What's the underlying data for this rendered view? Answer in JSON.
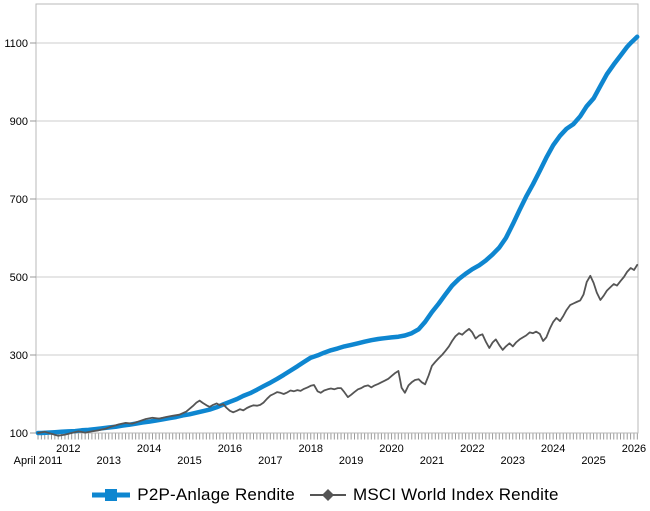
{
  "chart_data": {
    "type": "line",
    "title": "",
    "xlabel": "",
    "ylabel": "",
    "grid": "horizontal",
    "legend_position": "bottom",
    "y_axis": {
      "ticks": [
        100,
        300,
        500,
        700,
        900,
        1100
      ],
      "tick_labels": [
        "100",
        "300",
        "500",
        "700",
        "900",
        "1100"
      ],
      "range": [
        100,
        1200
      ]
    },
    "x_axis": {
      "range_years": [
        2011.2,
        2026.1
      ],
      "minor_tick_unit": "month",
      "top_row": [
        {
          "label": "2012",
          "year": 2012
        },
        {
          "label": "2014",
          "year": 2014
        },
        {
          "label": "2016",
          "year": 2016
        },
        {
          "label": "2018",
          "year": 2018
        },
        {
          "label": "2020",
          "year": 2020
        },
        {
          "label": "2022",
          "year": 2022
        },
        {
          "label": "2024",
          "year": 2024
        },
        {
          "label": "2026",
          "year": 2026
        }
      ],
      "bottom_row": [
        {
          "label": "April 2011",
          "year": 2011.25
        },
        {
          "label": "2013",
          "year": 2013
        },
        {
          "label": "2015",
          "year": 2015
        },
        {
          "label": "2017",
          "year": 2017
        },
        {
          "label": "2019",
          "year": 2019
        },
        {
          "label": "2021",
          "year": 2021
        },
        {
          "label": "2023",
          "year": 2023
        },
        {
          "label": "2025",
          "year": 2025
        }
      ]
    },
    "series": [
      {
        "name": "P2P-Anlage Rendite",
        "color": "#0e86d0",
        "marker": "square",
        "line_width": 4.5,
        "points": [
          [
            2011.25,
            100
          ],
          [
            2011.33,
            100
          ],
          [
            2011.5,
            101
          ],
          [
            2011.67,
            102
          ],
          [
            2011.83,
            103
          ],
          [
            2012.0,
            104
          ],
          [
            2012.17,
            105
          ],
          [
            2012.33,
            107
          ],
          [
            2012.5,
            108
          ],
          [
            2012.67,
            110
          ],
          [
            2012.83,
            112
          ],
          [
            2013.0,
            114
          ],
          [
            2013.17,
            116
          ],
          [
            2013.33,
            119
          ],
          [
            2013.5,
            121
          ],
          [
            2013.67,
            124
          ],
          [
            2013.83,
            127
          ],
          [
            2014.0,
            129
          ],
          [
            2014.17,
            132
          ],
          [
            2014.33,
            135
          ],
          [
            2014.5,
            138
          ],
          [
            2014.67,
            141
          ],
          [
            2014.83,
            145
          ],
          [
            2015.0,
            148
          ],
          [
            2015.17,
            152
          ],
          [
            2015.33,
            156
          ],
          [
            2015.5,
            160
          ],
          [
            2015.67,
            166
          ],
          [
            2015.83,
            173
          ],
          [
            2016.0,
            180
          ],
          [
            2016.17,
            187
          ],
          [
            2016.33,
            195
          ],
          [
            2016.5,
            202
          ],
          [
            2016.67,
            211
          ],
          [
            2016.83,
            220
          ],
          [
            2017.0,
            229
          ],
          [
            2017.17,
            239
          ],
          [
            2017.33,
            249
          ],
          [
            2017.5,
            260
          ],
          [
            2017.67,
            271
          ],
          [
            2017.83,
            282
          ],
          [
            2018.0,
            293
          ],
          [
            2018.17,
            299
          ],
          [
            2018.33,
            306
          ],
          [
            2018.5,
            312
          ],
          [
            2018.67,
            317
          ],
          [
            2018.83,
            322
          ],
          [
            2019.0,
            326
          ],
          [
            2019.17,
            330
          ],
          [
            2019.33,
            334
          ],
          [
            2019.5,
            338
          ],
          [
            2019.67,
            341
          ],
          [
            2019.83,
            343
          ],
          [
            2020.0,
            345
          ],
          [
            2020.17,
            347
          ],
          [
            2020.33,
            350
          ],
          [
            2020.5,
            356
          ],
          [
            2020.67,
            366
          ],
          [
            2020.83,
            385
          ],
          [
            2021.0,
            410
          ],
          [
            2021.17,
            432
          ],
          [
            2021.33,
            455
          ],
          [
            2021.5,
            478
          ],
          [
            2021.67,
            495
          ],
          [
            2021.83,
            508
          ],
          [
            2022.0,
            520
          ],
          [
            2022.17,
            530
          ],
          [
            2022.33,
            542
          ],
          [
            2022.5,
            558
          ],
          [
            2022.67,
            576
          ],
          [
            2022.83,
            600
          ],
          [
            2023.0,
            635
          ],
          [
            2023.17,
            672
          ],
          [
            2023.33,
            706
          ],
          [
            2023.5,
            738
          ],
          [
            2023.67,
            772
          ],
          [
            2023.83,
            806
          ],
          [
            2024.0,
            838
          ],
          [
            2024.17,
            862
          ],
          [
            2024.33,
            880
          ],
          [
            2024.5,
            892
          ],
          [
            2024.67,
            912
          ],
          [
            2024.83,
            938
          ],
          [
            2025.0,
            958
          ],
          [
            2025.17,
            990
          ],
          [
            2025.33,
            1020
          ],
          [
            2025.5,
            1045
          ],
          [
            2025.67,
            1068
          ],
          [
            2025.83,
            1090
          ],
          [
            2025.92,
            1100
          ],
          [
            2026.0,
            1108
          ],
          [
            2026.08,
            1116
          ]
        ]
      },
      {
        "name": "MSCI World Index Rendite",
        "color": "#555555",
        "marker": "diamond",
        "line_width": 1.8,
        "points": [
          [
            2011.25,
            100
          ],
          [
            2011.42,
            103
          ],
          [
            2011.58,
            98
          ],
          [
            2011.75,
            93
          ],
          [
            2011.92,
            96
          ],
          [
            2012.08,
            100
          ],
          [
            2012.25,
            104
          ],
          [
            2012.42,
            101
          ],
          [
            2012.58,
            104
          ],
          [
            2012.75,
            107
          ],
          [
            2012.92,
            111
          ],
          [
            2013.08,
            117
          ],
          [
            2013.25,
            122
          ],
          [
            2013.42,
            126
          ],
          [
            2013.58,
            124
          ],
          [
            2013.75,
            130
          ],
          [
            2013.92,
            136
          ],
          [
            2014.08,
            139
          ],
          [
            2014.25,
            137
          ],
          [
            2014.42,
            141
          ],
          [
            2014.58,
            144
          ],
          [
            2014.75,
            147
          ],
          [
            2014.92,
            155
          ],
          [
            2015.08,
            169
          ],
          [
            2015.17,
            178
          ],
          [
            2015.25,
            183
          ],
          [
            2015.33,
            177
          ],
          [
            2015.42,
            171
          ],
          [
            2015.5,
            167
          ],
          [
            2015.58,
            172
          ],
          [
            2015.67,
            176
          ],
          [
            2015.75,
            171
          ],
          [
            2015.83,
            174
          ],
          [
            2015.92,
            164
          ],
          [
            2016.0,
            157
          ],
          [
            2016.08,
            153
          ],
          [
            2016.17,
            157
          ],
          [
            2016.25,
            161
          ],
          [
            2016.33,
            158
          ],
          [
            2016.42,
            164
          ],
          [
            2016.5,
            168
          ],
          [
            2016.58,
            171
          ],
          [
            2016.67,
            170
          ],
          [
            2016.75,
            172
          ],
          [
            2016.83,
            178
          ],
          [
            2016.92,
            188
          ],
          [
            2017.0,
            196
          ],
          [
            2017.08,
            200
          ],
          [
            2017.17,
            205
          ],
          [
            2017.25,
            203
          ],
          [
            2017.33,
            200
          ],
          [
            2017.42,
            204
          ],
          [
            2017.5,
            209
          ],
          [
            2017.58,
            207
          ],
          [
            2017.67,
            210
          ],
          [
            2017.75,
            208
          ],
          [
            2017.83,
            213
          ],
          [
            2017.92,
            217
          ],
          [
            2018.0,
            221
          ],
          [
            2018.08,
            223
          ],
          [
            2018.17,
            207
          ],
          [
            2018.25,
            203
          ],
          [
            2018.33,
            209
          ],
          [
            2018.42,
            212
          ],
          [
            2018.5,
            214
          ],
          [
            2018.58,
            212
          ],
          [
            2018.67,
            215
          ],
          [
            2018.75,
            215
          ],
          [
            2018.83,
            205
          ],
          [
            2018.92,
            192
          ],
          [
            2019.0,
            198
          ],
          [
            2019.08,
            205
          ],
          [
            2019.17,
            212
          ],
          [
            2019.25,
            215
          ],
          [
            2019.33,
            220
          ],
          [
            2019.42,
            222
          ],
          [
            2019.5,
            217
          ],
          [
            2019.58,
            222
          ],
          [
            2019.67,
            226
          ],
          [
            2019.75,
            230
          ],
          [
            2019.83,
            234
          ],
          [
            2019.92,
            239
          ],
          [
            2020.0,
            246
          ],
          [
            2020.08,
            253
          ],
          [
            2020.17,
            259
          ],
          [
            2020.25,
            216
          ],
          [
            2020.33,
            203
          ],
          [
            2020.42,
            222
          ],
          [
            2020.5,
            230
          ],
          [
            2020.58,
            236
          ],
          [
            2020.67,
            238
          ],
          [
            2020.75,
            230
          ],
          [
            2020.83,
            225
          ],
          [
            2020.92,
            248
          ],
          [
            2021.0,
            272
          ],
          [
            2021.08,
            282
          ],
          [
            2021.17,
            292
          ],
          [
            2021.25,
            300
          ],
          [
            2021.33,
            310
          ],
          [
            2021.42,
            322
          ],
          [
            2021.5,
            336
          ],
          [
            2021.58,
            348
          ],
          [
            2021.67,
            356
          ],
          [
            2021.75,
            352
          ],
          [
            2021.83,
            360
          ],
          [
            2021.92,
            367
          ],
          [
            2022.0,
            358
          ],
          [
            2022.08,
            342
          ],
          [
            2022.17,
            350
          ],
          [
            2022.25,
            353
          ],
          [
            2022.33,
            335
          ],
          [
            2022.42,
            318
          ],
          [
            2022.5,
            332
          ],
          [
            2022.58,
            340
          ],
          [
            2022.67,
            325
          ],
          [
            2022.75,
            313
          ],
          [
            2022.83,
            322
          ],
          [
            2022.92,
            330
          ],
          [
            2023.0,
            322
          ],
          [
            2023.08,
            332
          ],
          [
            2023.17,
            340
          ],
          [
            2023.25,
            345
          ],
          [
            2023.33,
            350
          ],
          [
            2023.42,
            358
          ],
          [
            2023.5,
            356
          ],
          [
            2023.58,
            360
          ],
          [
            2023.67,
            354
          ],
          [
            2023.75,
            336
          ],
          [
            2023.83,
            345
          ],
          [
            2023.92,
            368
          ],
          [
            2024.0,
            385
          ],
          [
            2024.08,
            395
          ],
          [
            2024.17,
            387
          ],
          [
            2024.25,
            400
          ],
          [
            2024.33,
            415
          ],
          [
            2024.42,
            428
          ],
          [
            2024.5,
            432
          ],
          [
            2024.58,
            436
          ],
          [
            2024.67,
            440
          ],
          [
            2024.75,
            455
          ],
          [
            2024.83,
            487
          ],
          [
            2024.92,
            503
          ],
          [
            2025.0,
            485
          ],
          [
            2025.08,
            460
          ],
          [
            2025.17,
            441
          ],
          [
            2025.25,
            452
          ],
          [
            2025.33,
            465
          ],
          [
            2025.42,
            474
          ],
          [
            2025.5,
            482
          ],
          [
            2025.58,
            478
          ],
          [
            2025.67,
            490
          ],
          [
            2025.75,
            500
          ],
          [
            2025.83,
            513
          ],
          [
            2025.92,
            523
          ],
          [
            2026.0,
            518
          ],
          [
            2026.08,
            531
          ]
        ]
      }
    ]
  },
  "colors": {
    "background": "#ffffff",
    "plot_border": "#b9b9b9",
    "gridline": "#cccccc",
    "tick": "#999999",
    "axis_text": "#000000",
    "p2p_blue": "#0e86d0",
    "msci_gray": "#555555"
  }
}
